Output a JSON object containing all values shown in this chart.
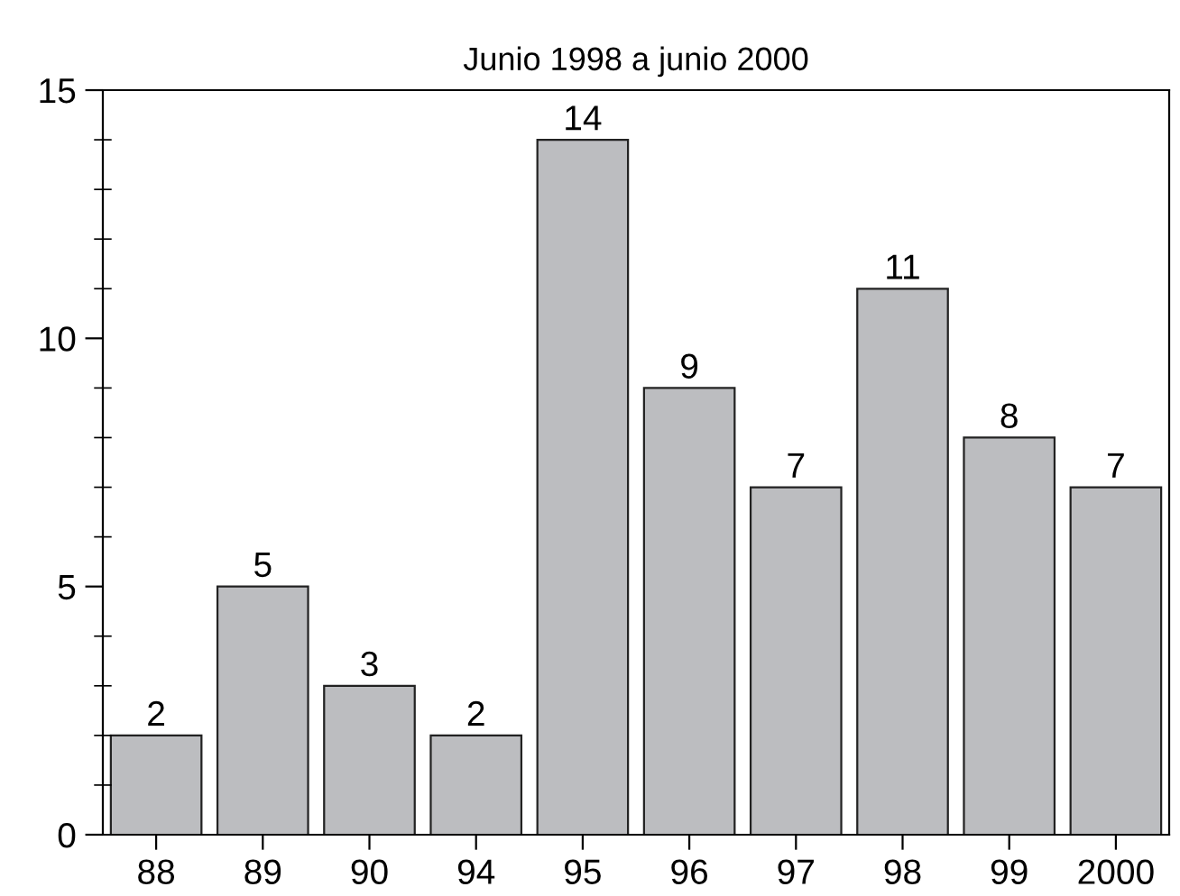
{
  "chart_data": {
    "type": "bar",
    "title": "Junio 1998 a junio 2000",
    "categories": [
      "88",
      "89",
      "90",
      "94",
      "95",
      "96",
      "97",
      "98",
      "99",
      "2000"
    ],
    "values": [
      2,
      5,
      3,
      2,
      14,
      9,
      7,
      11,
      8,
      7
    ],
    "color": "#bcbdc0",
    "ylim": [
      0,
      15
    ],
    "yticks": [
      0,
      {
        "value": 1,
        "label": null
      },
      {
        "value": 2,
        "label": null
      },
      {
        "value": 3,
        "label": null
      },
      {
        "value": 4,
        "label": null
      },
      5,
      {
        "value": 6,
        "label": null
      },
      {
        "value": 7,
        "label": null
      },
      {
        "value": 8,
        "label": null
      },
      {
        "value": 9,
        "label": null
      },
      10,
      {
        "value": 11,
        "label": null
      },
      {
        "value": 12,
        "label": null
      },
      {
        "value": 13,
        "label": null
      },
      {
        "value": 14,
        "label": null
      },
      15
    ],
    "data_labels": true,
    "grid": false
  }
}
